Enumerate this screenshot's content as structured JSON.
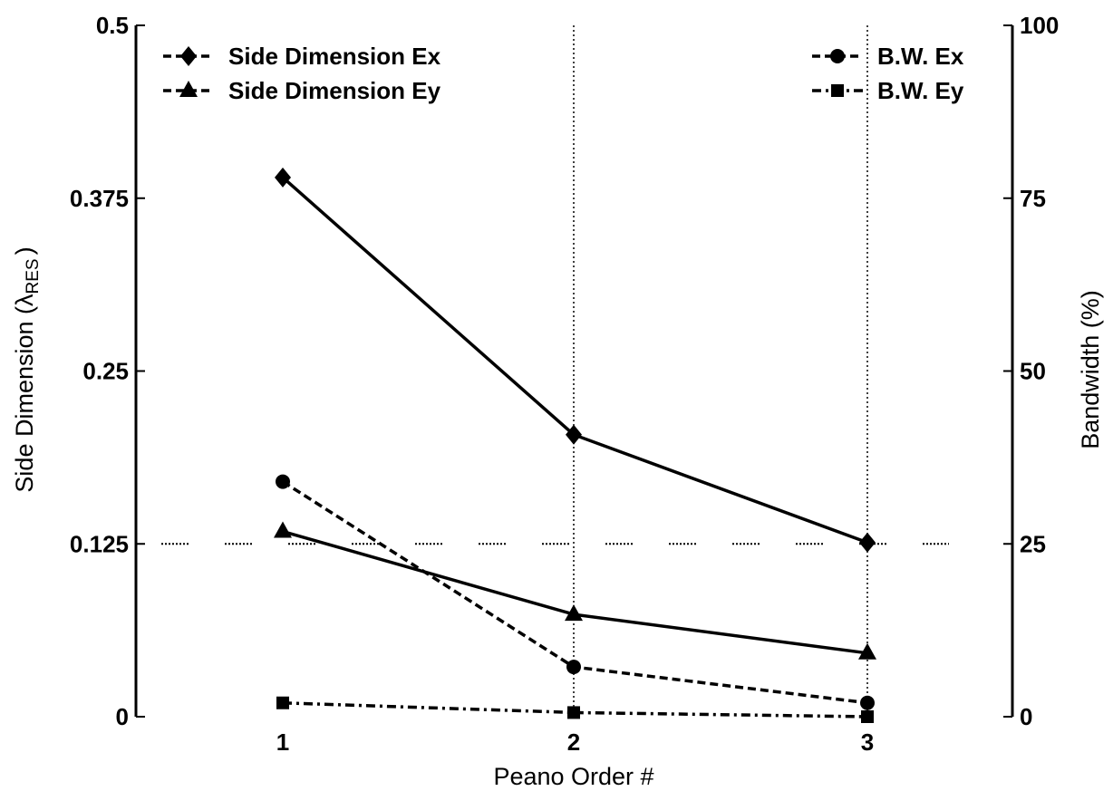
{
  "chart_data": {
    "type": "line",
    "xlabel": "Peano Order #",
    "ylabel_left": {
      "main": "Side Dimension (",
      "symbol": "λ",
      "subscript": "RES",
      "close": ")"
    },
    "ylabel_right": "Bandwidth (%)",
    "x": [
      1,
      2,
      3
    ],
    "x_tick_labels": [
      "1",
      "2",
      "3"
    ],
    "ylim_left": [
      0,
      0.5
    ],
    "ylim_right": [
      0,
      100
    ],
    "left_tick_labels": [
      "0",
      "0.125",
      "0.25",
      "0.375",
      "0.5"
    ],
    "right_tick_labels": [
      "0",
      "25",
      "50",
      "75",
      "100"
    ],
    "grid": "dotted lines at x = 2, 3 and left y = 0.125",
    "series": [
      {
        "name": "Side Dimension Ex",
        "axis": "left",
        "values": [
          0.39,
          0.204,
          0.126
        ],
        "marker": "diamond",
        "line": "solid"
      },
      {
        "name": "Side Dimension Ey",
        "axis": "left",
        "values": [
          0.134,
          0.074,
          0.046
        ],
        "marker": "triangle",
        "line": "solid"
      },
      {
        "name": "B.W. Ex",
        "axis": "right",
        "values": [
          34,
          7.2,
          2
        ],
        "marker": "circle",
        "line": "dashed"
      },
      {
        "name": "B.W. Ey",
        "axis": "right",
        "values": [
          2,
          0.6,
          0
        ],
        "marker": "square",
        "line": "dash-dot"
      }
    ],
    "legend": {
      "left_entries": [
        "Side Dimension Ex",
        "Side Dimension Ey"
      ],
      "right_entries": [
        "B.W. Ex",
        "B.W. Ey"
      ]
    }
  }
}
